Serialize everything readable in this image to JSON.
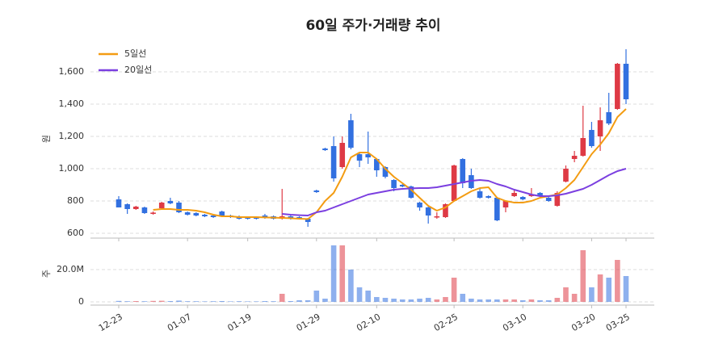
{
  "chart_data": {
    "type": "candlestick",
    "title": "60일 주가·거래량 추이",
    "y_label": "원",
    "volume_label": "주",
    "categories": [
      "12-23",
      null,
      null,
      null,
      null,
      null,
      null,
      null,
      "01-07",
      null,
      null,
      null,
      null,
      null,
      null,
      "01-19",
      null,
      null,
      null,
      null,
      null,
      null,
      null,
      "01-29",
      null,
      null,
      null,
      null,
      null,
      null,
      "02-10",
      null,
      null,
      null,
      null,
      null,
      null,
      null,
      null,
      "02-25",
      null,
      null,
      null,
      null,
      null,
      null,
      null,
      "03-10",
      null,
      null,
      null,
      null,
      null,
      null,
      null,
      "03-20",
      null,
      null,
      null,
      "03-25"
    ],
    "open": [
      810,
      780,
      750,
      760,
      720,
      755,
      800,
      790,
      730,
      725,
      715,
      710,
      735,
      710,
      705,
      700,
      700,
      710,
      705,
      690,
      705,
      700,
      690,
      865,
      1125,
      1140,
      1010,
      1300,
      1090,
      1090,
      1060,
      1010,
      930,
      900,
      890,
      790,
      760,
      700,
      700,
      800,
      1060,
      960,
      860,
      830,
      820,
      760,
      830,
      825,
      830,
      850,
      820,
      770,
      920,
      1060,
      1080,
      1240,
      1200,
      1350,
      1370,
      1650
    ],
    "high": [
      830,
      785,
      770,
      765,
      735,
      795,
      820,
      800,
      735,
      730,
      720,
      715,
      740,
      715,
      710,
      705,
      705,
      720,
      710,
      875,
      710,
      705,
      695,
      870,
      1130,
      1200,
      1200,
      1340,
      1095,
      1230,
      1065,
      1015,
      935,
      905,
      895,
      795,
      765,
      730,
      785,
      1025,
      1065,
      1000,
      880,
      835,
      825,
      805,
      870,
      830,
      880,
      855,
      825,
      860,
      1020,
      1110,
      1390,
      1290,
      1380,
      1470,
      1655,
      1740
    ],
    "low": [
      760,
      720,
      745,
      720,
      715,
      750,
      780,
      725,
      710,
      705,
      700,
      695,
      700,
      695,
      685,
      685,
      685,
      690,
      685,
      685,
      685,
      685,
      640,
      850,
      1110,
      920,
      1000,
      1120,
      1010,
      1030,
      950,
      940,
      860,
      885,
      815,
      740,
      660,
      690,
      695,
      795,
      880,
      875,
      815,
      815,
      675,
      730,
      825,
      805,
      825,
      830,
      795,
      765,
      915,
      1040,
      1075,
      1130,
      1110,
      1270,
      1365,
      1400
    ],
    "close": [
      760,
      750,
      765,
      725,
      728,
      790,
      785,
      730,
      715,
      710,
      705,
      700,
      705,
      700,
      690,
      690,
      690,
      695,
      690,
      705,
      690,
      690,
      670,
      855,
      1115,
      940,
      1160,
      1130,
      1050,
      1070,
      990,
      950,
      880,
      890,
      820,
      760,
      710,
      705,
      780,
      1020,
      910,
      880,
      820,
      820,
      680,
      800,
      850,
      810,
      840,
      835,
      800,
      850,
      1000,
      1080,
      1190,
      1140,
      1300,
      1280,
      1650,
      1430
    ],
    "volume": [
      600000,
      400000,
      500000,
      400000,
      600000,
      700000,
      500000,
      800000,
      400000,
      400000,
      300000,
      400000,
      500000,
      300000,
      400000,
      300000,
      300000,
      500000,
      400000,
      5000000,
      500000,
      1000000,
      1000000,
      7000000,
      2000000,
      35000000,
      35000000,
      20000000,
      9000000,
      7000000,
      3000000,
      2500000,
      2000000,
      1500000,
      1500000,
      2000000,
      2500000,
      1500000,
      3000000,
      15000000,
      5000000,
      2000000,
      1500000,
      1500000,
      1500000,
      1500000,
      1500000,
      1000000,
      1500000,
      1000000,
      1000000,
      2500000,
      9000000,
      5000000,
      32000000,
      9000000,
      17000000,
      15000000,
      26000000,
      16000000
    ],
    "series": [
      {
        "name": "5일선",
        "color": "#f39c12",
        "values": [
          null,
          null,
          null,
          null,
          745,
          750,
          750,
          745,
          745,
          740,
          730,
          715,
          705,
          705,
          700,
          700,
          700,
          698,
          697,
          695,
          693,
          690,
          688,
          730,
          800,
          850,
          950,
          1070,
          1100,
          1100,
          1060,
          1000,
          950,
          910,
          870,
          820,
          770,
          740,
          760,
          800,
          830,
          860,
          880,
          885,
          820,
          800,
          790,
          790,
          800,
          820,
          830,
          840,
          880,
          930,
          1010,
          1090,
          1150,
          1220,
          1320,
          1370
        ]
      },
      {
        "name": "20일선",
        "color": "#7b3fe0",
        "values": [
          null,
          null,
          null,
          null,
          null,
          null,
          null,
          null,
          null,
          null,
          null,
          null,
          null,
          null,
          null,
          null,
          null,
          null,
          null,
          720,
          715,
          712,
          710,
          730,
          740,
          760,
          780,
          800,
          820,
          840,
          850,
          860,
          870,
          875,
          878,
          880,
          880,
          885,
          895,
          905,
          915,
          925,
          930,
          925,
          905,
          890,
          870,
          855,
          840,
          830,
          830,
          835,
          845,
          860,
          875,
          900,
          930,
          960,
          985,
          1000
        ]
      }
    ],
    "up_color": "#de3a45",
    "down_color": "#3270e0",
    "ylim": [
      570,
      1795
    ],
    "yticks": [
      600,
      800,
      {
        "value": 1000,
        "label": "1,000"
      },
      {
        "value": 1200,
        "label": "1,200"
      },
      {
        "value": 1400,
        "label": "1,400"
      },
      {
        "value": 1600,
        "label": "1,600"
      }
    ],
    "volume_ylim": [
      0,
      37000000
    ],
    "volume_yticks": [
      0,
      {
        "value": 20000000,
        "label": "20.0M"
      }
    ],
    "grid": true,
    "legend": "upper left"
  }
}
